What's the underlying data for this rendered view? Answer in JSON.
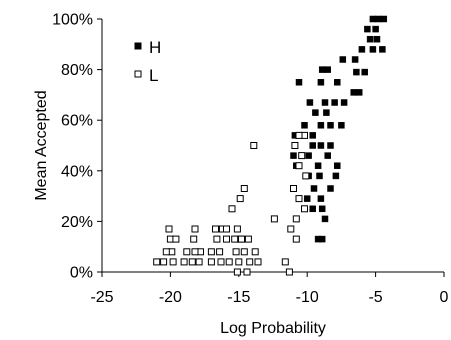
{
  "chart_data": {
    "type": "scatter",
    "title": "",
    "xlabel": "Log Probability",
    "ylabel": "Mean Accepted",
    "xlim": [
      -25,
      0
    ],
    "ylim": [
      0,
      100
    ],
    "x_ticks": [
      -25,
      -20,
      -15,
      -10,
      -5,
      0
    ],
    "x_tick_labels": [
      "-25",
      "-20",
      "-15",
      "-10",
      "-5",
      "0"
    ],
    "y_ticks": [
      0,
      20,
      40,
      60,
      80,
      100
    ],
    "y_tick_labels": [
      "0%",
      "20%",
      "40%",
      "60%",
      "80%",
      "100%"
    ],
    "grid": false,
    "legend_position": "top-left",
    "series": [
      {
        "name": "H",
        "marker": "filled-square",
        "color": "#000000",
        "points": [
          [
            -5.2,
            100
          ],
          [
            -4.8,
            100
          ],
          [
            -4.4,
            100
          ],
          [
            -5.6,
            96
          ],
          [
            -5.0,
            96
          ],
          [
            -5.4,
            92
          ],
          [
            -4.9,
            92
          ],
          [
            -6.0,
            88
          ],
          [
            -5.2,
            88
          ],
          [
            -4.5,
            88
          ],
          [
            -6.5,
            84
          ],
          [
            -7.4,
            84
          ],
          [
            -8.5,
            80
          ],
          [
            -8.9,
            80
          ],
          [
            -6.4,
            79
          ],
          [
            -5.8,
            79
          ],
          [
            -10.6,
            75
          ],
          [
            -9.0,
            75
          ],
          [
            -7.8,
            75
          ],
          [
            -6.6,
            71
          ],
          [
            -6.2,
            71
          ],
          [
            -9.8,
            67
          ],
          [
            -8.7,
            67
          ],
          [
            -8.0,
            67
          ],
          [
            -7.3,
            67
          ],
          [
            -9.4,
            63
          ],
          [
            -8.6,
            63
          ],
          [
            -10.2,
            58
          ],
          [
            -9.0,
            58
          ],
          [
            -8.3,
            58
          ],
          [
            -7.5,
            58
          ],
          [
            -10.9,
            54
          ],
          [
            -9.6,
            54
          ],
          [
            -9.6,
            50
          ],
          [
            -9.0,
            50
          ],
          [
            -8.3,
            50
          ],
          [
            -11.0,
            46
          ],
          [
            -9.9,
            46
          ],
          [
            -8.5,
            46
          ],
          [
            -10.8,
            42
          ],
          [
            -9.2,
            42
          ],
          [
            -7.8,
            42
          ],
          [
            -9.9,
            38
          ],
          [
            -9.1,
            38
          ],
          [
            -7.9,
            38
          ],
          [
            -9.5,
            33
          ],
          [
            -8.3,
            33
          ],
          [
            -10.0,
            29
          ],
          [
            -9.0,
            29
          ],
          [
            -9.6,
            25
          ],
          [
            -8.9,
            25
          ],
          [
            -8.7,
            21
          ],
          [
            -9.2,
            13
          ],
          [
            -8.9,
            13
          ]
        ]
      },
      {
        "name": "L",
        "marker": "open-square",
        "color": "#000000",
        "points": [
          [
            -10.2,
            54
          ],
          [
            -10.6,
            54
          ],
          [
            -10.9,
            50
          ],
          [
            -10.4,
            46
          ],
          [
            -10.6,
            42
          ],
          [
            -10.1,
            38
          ],
          [
            -11.0,
            33
          ],
          [
            -10.6,
            29
          ],
          [
            -10.2,
            25
          ],
          [
            -10.8,
            21
          ],
          [
            -11.2,
            17
          ],
          [
            -10.8,
            13
          ],
          [
            -13.9,
            50
          ],
          [
            -14.6,
            33
          ],
          [
            -14.9,
            29
          ],
          [
            -15.5,
            25
          ],
          [
            -12.4,
            21
          ],
          [
            -15.1,
            17
          ],
          [
            -16.2,
            17
          ],
          [
            -16.7,
            17
          ],
          [
            -15.9,
            17
          ],
          [
            -14.9,
            13
          ],
          [
            -15.3,
            13
          ],
          [
            -15.9,
            13
          ],
          [
            -16.6,
            13
          ],
          [
            -14.3,
            13
          ],
          [
            -14.8,
            13
          ],
          [
            -13.8,
            8
          ],
          [
            -14.6,
            8
          ],
          [
            -15.2,
            8
          ],
          [
            -16.4,
            8
          ],
          [
            -17.0,
            8
          ],
          [
            -17.8,
            8
          ],
          [
            -13.6,
            4
          ],
          [
            -14.2,
            4
          ],
          [
            -15.0,
            4
          ],
          [
            -15.7,
            4
          ],
          [
            -16.3,
            4
          ],
          [
            -17.0,
            4
          ],
          [
            -17.9,
            4
          ],
          [
            -18.4,
            4
          ],
          [
            -19.0,
            4
          ],
          [
            -19.8,
            4
          ],
          [
            -20.5,
            4
          ],
          [
            -21.0,
            4
          ],
          [
            -20.1,
            17
          ],
          [
            -18.2,
            17
          ],
          [
            -20.0,
            13
          ],
          [
            -19.6,
            13
          ],
          [
            -19.9,
            8
          ],
          [
            -20.3,
            8
          ],
          [
            -18.8,
            8
          ],
          [
            -18.3,
            13
          ],
          [
            -18.2,
            8
          ],
          [
            -14.4,
            0
          ],
          [
            -15.1,
            0
          ],
          [
            -11.3,
            0
          ],
          [
            -11.6,
            4
          ]
        ]
      }
    ],
    "legend": [
      {
        "label": "H",
        "marker": "filled-square"
      },
      {
        "label": "L",
        "marker": "open-square"
      }
    ]
  }
}
